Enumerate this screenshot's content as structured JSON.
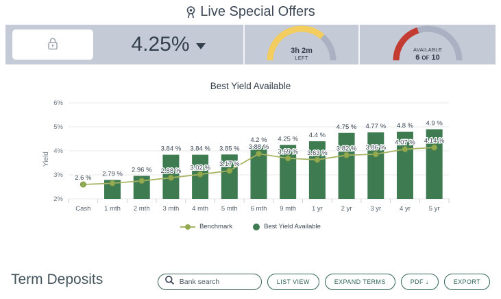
{
  "header": {
    "title": "Live Special Offers"
  },
  "offer_bar": {
    "rate": "4.25%",
    "gauge_track_color": "#a9b1c2",
    "time_gauge": {
      "line1": "3h 2m",
      "line2": "LEFT",
      "fraction": 0.73,
      "color": "#f4cd5f"
    },
    "availability_gauge": {
      "line1": "AVAILABLE",
      "line2": "6 of 10",
      "fraction": 0.4,
      "color": "#c43b31"
    }
  },
  "chart_data": {
    "type": "bar",
    "title": "Best Yield Available",
    "xlabel": "",
    "ylabel": "Yield",
    "categories": [
      "Cash",
      "1 mth",
      "2 mth",
      "3 mth",
      "4 mth",
      "5 mth",
      "6 mth",
      "9 mth",
      "1 yr",
      "2 yr",
      "3 yr",
      "4 yr",
      "5 yr"
    ],
    "ylim": [
      2,
      6
    ],
    "yticks": [
      "2%",
      "3%",
      "4%",
      "5%",
      "6%"
    ],
    "grid": true,
    "legend_position": "bottom",
    "series": [
      {
        "name": "Benchmark",
        "type": "line",
        "color": "#a9b364",
        "point_color": "#93ab50",
        "values": [
          2.6,
          2.65,
          2.75,
          2.88,
          3.02,
          3.17,
          3.88,
          3.69,
          3.63,
          3.82,
          3.86,
          4.07,
          4.14
        ],
        "labels": [
          "2.6 %",
          "",
          "",
          "2.88 %",
          "3.02 %",
          "3.17 %",
          "3.88 %",
          "3.69 %",
          "3.63 %",
          "3.82 %",
          "3.86 %",
          "4.07 %",
          "4.14 %"
        ]
      },
      {
        "name": "Best Yield Available",
        "type": "bar",
        "color": "#3e7b51",
        "values": [
          null,
          2.79,
          2.96,
          3.84,
          3.84,
          3.85,
          4.2,
          4.25,
          4.4,
          4.75,
          4.77,
          4.8,
          4.9
        ],
        "labels": [
          "",
          "2.79 %",
          "2.96 %",
          "3.84 %",
          "3.84 %",
          "3.85 %",
          "4.2 %",
          "4.25 %",
          "4.4 %",
          "4.75 %",
          "4.77 %",
          "4.8 %",
          "4.9 %"
        ]
      }
    ]
  },
  "footer": {
    "title": "Term Deposits",
    "search_placeholder": "Bank search",
    "buttons": [
      "LIST VIEW",
      "EXPAND TERMS",
      "PDF ↓",
      "EXPORT"
    ]
  }
}
